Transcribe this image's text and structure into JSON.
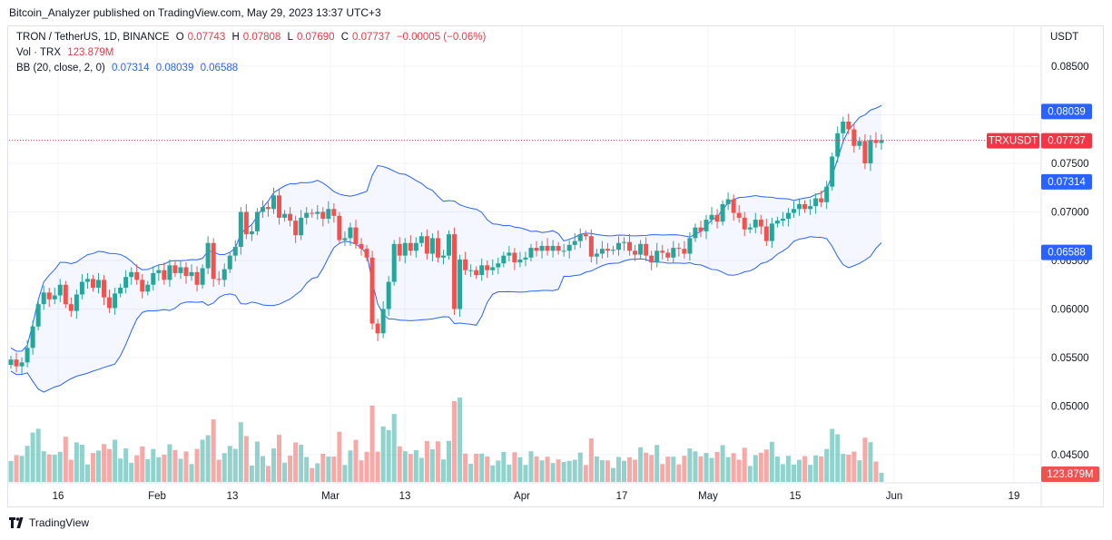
{
  "header": {
    "publisher": "Bitcoin_Analyzer published on TradingView.com, May 29, 2023 13:37 UTC+3"
  },
  "legend": {
    "symbol": "TRON / TetherUS, 1D, BINANCE",
    "open_label": "O",
    "open": "0.07743",
    "high_label": "H",
    "high": "0.07808",
    "low_label": "L",
    "low": "0.07690",
    "close_label": "C",
    "close": "0.07737",
    "change": "−0.00005 (−0.06%)",
    "vol_label": "Vol · TRX",
    "vol": "123.879M",
    "bb_label": "BB (20, close, 2, 0)",
    "bb_mid": "0.07314",
    "bb_upper": "0.08039",
    "bb_lower": "0.06588"
  },
  "axis": {
    "currency": "USDT",
    "y_ticks": [
      "0.08500",
      "0.08000",
      "0.07500",
      "0.07000",
      "0.06500",
      "0.06000",
      "0.05500",
      "0.05000",
      "0.04500"
    ],
    "x_ticks": [
      "16",
      "Feb",
      "13",
      "Mar",
      "13",
      "Apr",
      "17",
      "May",
      "15",
      "Jun",
      "19"
    ],
    "price_tag_symbol": "TRXUSDT",
    "price_tag": "0.07737",
    "upper_tag": "0.08039",
    "mid_tag": "0.07314",
    "lower_tag": "0.06588",
    "volume_tag": "123.879M"
  },
  "footer": {
    "brand": "TradingView"
  },
  "colors": {
    "up": "#26a69a",
    "down": "#ef5350",
    "band": "#2962ff",
    "band_fill": "#2962ff",
    "last_price": "#f23645"
  },
  "chart_data": {
    "type": "candlestick",
    "title": "TRON / TetherUS, 1D, BINANCE",
    "ylabel": "USDT",
    "ylim": [
      0.04,
      0.088
    ],
    "x_ticks": [
      "16",
      "Feb",
      "13",
      "Mar",
      "13",
      "Apr",
      "17",
      "May",
      "15",
      "Jun",
      "19"
    ],
    "last_close": 0.07737,
    "bollinger": {
      "period": 20,
      "upper": 0.08039,
      "mid": 0.07314,
      "lower": 0.06588
    },
    "ohlc_close": [
      0.0548,
      0.0541,
      0.0545,
      0.056,
      0.0582,
      0.0605,
      0.0617,
      0.061,
      0.0614,
      0.0625,
      0.0605,
      0.0598,
      0.0615,
      0.0628,
      0.0631,
      0.0622,
      0.063,
      0.0612,
      0.0601,
      0.0616,
      0.0622,
      0.0633,
      0.0638,
      0.063,
      0.0618,
      0.0625,
      0.0637,
      0.064,
      0.063,
      0.0645,
      0.0637,
      0.0643,
      0.0634,
      0.0638,
      0.0625,
      0.0642,
      0.0668,
      0.0631,
      0.063,
      0.0641,
      0.0655,
      0.0664,
      0.07,
      0.0677,
      0.068,
      0.07,
      0.0705,
      0.0703,
      0.0717,
      0.0694,
      0.0698,
      0.0691,
      0.0676,
      0.0694,
      0.0699,
      0.0698,
      0.07,
      0.0693,
      0.0703,
      0.0696,
      0.0671,
      0.0673,
      0.0684,
      0.0667,
      0.0662,
      0.0653,
      0.0585,
      0.0575,
      0.06,
      0.0628,
      0.0667,
      0.0655,
      0.0668,
      0.066,
      0.0668,
      0.0675,
      0.0657,
      0.0673,
      0.0653,
      0.0655,
      0.0677,
      0.06,
      0.0651,
      0.064,
      0.064,
      0.0635,
      0.0645,
      0.064,
      0.0643,
      0.0647,
      0.0655,
      0.0658,
      0.0648,
      0.0651,
      0.0653,
      0.0663,
      0.066,
      0.0665,
      0.066,
      0.0665,
      0.066,
      0.066,
      0.0666,
      0.067,
      0.0677,
      0.0675,
      0.0654,
      0.0657,
      0.0662,
      0.066,
      0.0661,
      0.0668,
      0.0669,
      0.066,
      0.0656,
      0.0667,
      0.0655,
      0.0648,
      0.066,
      0.0658,
      0.0653,
      0.0663,
      0.0662,
      0.0657,
      0.0673,
      0.0684,
      0.068,
      0.0692,
      0.0697,
      0.069,
      0.0708,
      0.0713,
      0.0699,
      0.0694,
      0.0682,
      0.0684,
      0.0692,
      0.0685,
      0.067,
      0.0688,
      0.0691,
      0.0693,
      0.0699,
      0.0703,
      0.0708,
      0.0703,
      0.0706,
      0.0714,
      0.071,
      0.0726,
      0.0757,
      0.0781,
      0.0793,
      0.0785,
      0.0768,
      0.0773,
      0.075,
      0.0774,
      0.0771,
      0.0774
    ],
    "volume_note": "relative daily volume, last bar 123.879M"
  }
}
